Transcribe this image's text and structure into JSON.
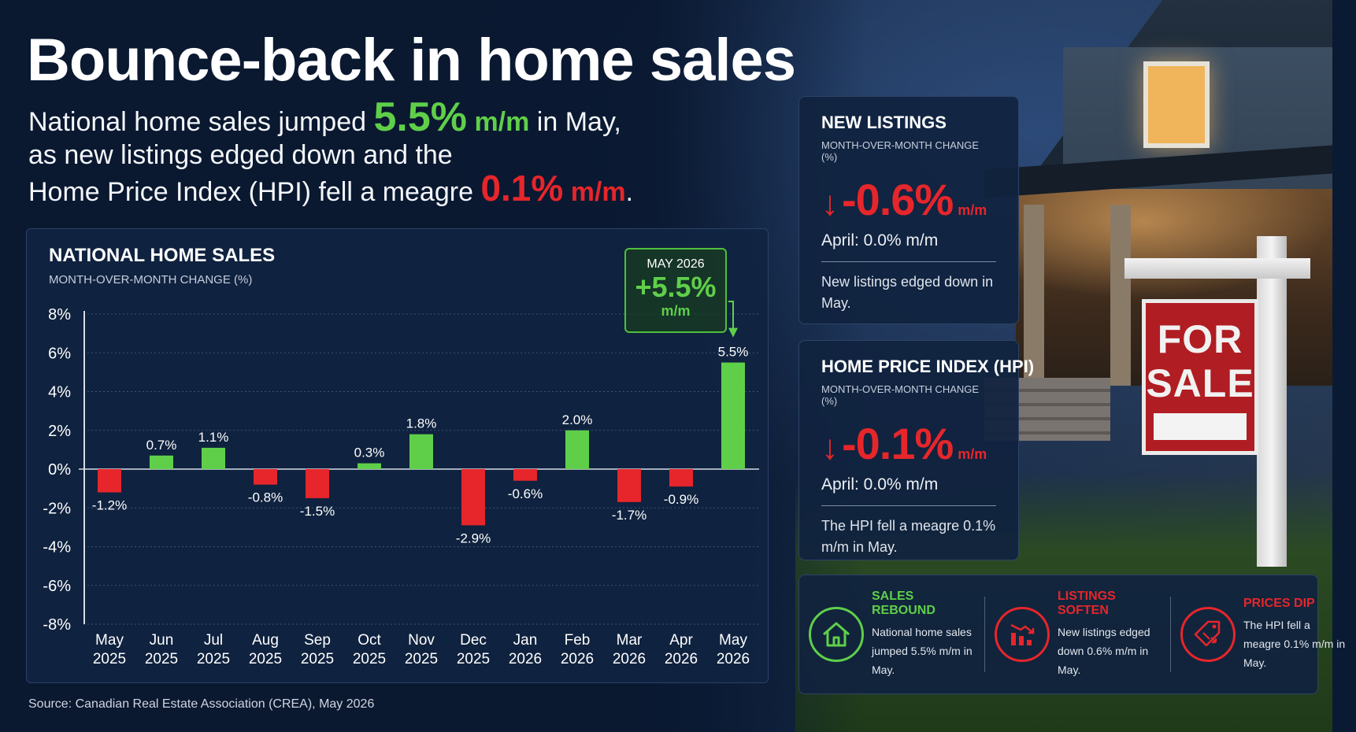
{
  "headline": "Bounce-back in home sales",
  "subhead": {
    "p1": "National home sales jumped ",
    "sales_value": "5.5%",
    "sales_unit": " m/m",
    "p2": " in May,",
    "p3": "as new listings edged down and the",
    "p4": "Home Price Index (HPI) fell a meagre ",
    "hpi_value": "0.1%",
    "hpi_unit": " m/m",
    "p5": "."
  },
  "colors": {
    "positive": "#5fcf4a",
    "negative": "#e6262b",
    "background": "#0b1a33"
  },
  "chart_data": {
    "type": "bar",
    "title": "NATIONAL HOME SALES",
    "subtitle": "MONTH-OVER-MONTH CHANGE (%)",
    "categories": [
      [
        "May",
        "2025"
      ],
      [
        "Jun",
        "2025"
      ],
      [
        "Jul",
        "2025"
      ],
      [
        "Aug",
        "2025"
      ],
      [
        "Sep",
        "2025"
      ],
      [
        "Oct",
        "2025"
      ],
      [
        "Nov",
        "2025"
      ],
      [
        "Dec",
        "2025"
      ],
      [
        "Jan",
        "2026"
      ],
      [
        "Feb",
        "2026"
      ],
      [
        "Mar",
        "2026"
      ],
      [
        "Apr",
        "2026"
      ],
      [
        "May",
        "2026"
      ]
    ],
    "values": [
      -1.2,
      0.7,
      1.1,
      -0.8,
      -1.5,
      0.3,
      1.8,
      -2.9,
      -0.6,
      2.0,
      -1.7,
      -0.9,
      5.5
    ],
    "data_labels": [
      "-1.2%",
      "0.7%",
      "1.1%",
      "-0.8%",
      "-1.5%",
      "0.3%",
      "1.8%",
      "-2.9%",
      "-0.6%",
      "2.0%",
      "-1.7%",
      "-0.9%",
      "5.5%"
    ],
    "ylim": [
      -8,
      8
    ],
    "yticks": [
      8,
      6,
      4,
      2,
      0,
      -2,
      -4,
      -6,
      -8
    ],
    "ytick_labels": [
      "8%",
      "6%",
      "4%",
      "2%",
      "0%",
      "-2%",
      "-4%",
      "-6%",
      "-8%"
    ],
    "grid": true,
    "legend": "none",
    "annotation": {
      "label": "MAY 2026",
      "value": "+5.5%",
      "unit": "m/m",
      "target_index": 12
    }
  },
  "cards": [
    {
      "title": "NEW LISTINGS",
      "subtitle": "MONTH-OVER-MONTH CHANGE (%)",
      "arrow": "down-arrow-icon",
      "value": "-0.6%",
      "unit": "m/m",
      "previous": "April: 0.0% m/m",
      "note": "New listings edged down in May."
    },
    {
      "title": "HOME PRICE INDEX (HPI)",
      "subtitle": "MONTH-OVER-MONTH CHANGE (%)",
      "arrow": "down-arrow-icon",
      "value": "-0.1%",
      "unit": "m/m",
      "previous": "April: 0.0% m/m",
      "note": "The HPI fell a meagre 0.1% m/m in May."
    }
  ],
  "summary": [
    {
      "icon": "house-icon",
      "title": "SALES REBOUND",
      "body": "National home sales jumped 5.5% m/m in May."
    },
    {
      "icon": "falling-bars-icon",
      "title": "LISTINGS SOFTEN",
      "body": "New listings edged down 0.6% m/m in May."
    },
    {
      "icon": "price-tag-icon",
      "title": "PRICES DIP",
      "body": "The HPI fell a meagre 0.1% m/m in May."
    }
  ],
  "sign": {
    "line1": "FOR",
    "line2": "SALE"
  },
  "source": "Source: Canadian Real Estate Association (CREA), May 2026"
}
